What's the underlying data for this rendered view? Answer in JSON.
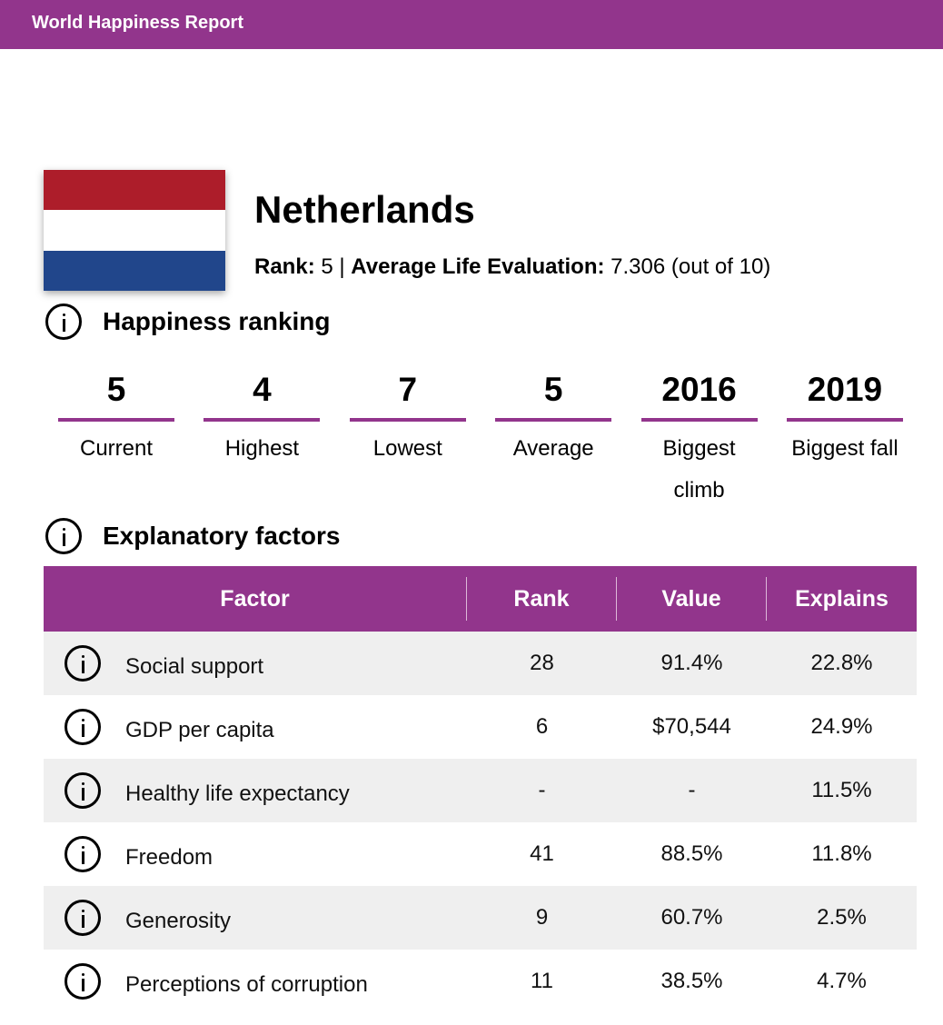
{
  "header": {
    "title": "World Happiness Report"
  },
  "country": {
    "name": "Netherlands",
    "flag": {
      "colors": [
        "#ad1d2a",
        "#ffffff",
        "#21468b"
      ]
    },
    "rank_label": "Rank:",
    "rank": "5",
    "separator": "|",
    "evaluation_label": "Average Life Evaluation:",
    "evaluation": "7.306 (out of 10)"
  },
  "happiness_ranking": {
    "heading": "Happiness ranking",
    "stats": [
      {
        "value": "5",
        "label": "Current"
      },
      {
        "value": "4",
        "label": "Highest"
      },
      {
        "value": "7",
        "label": "Lowest"
      },
      {
        "value": "5",
        "label": "Average"
      },
      {
        "value": "2016",
        "label": "Biggest climb"
      },
      {
        "value": "2019",
        "label": "Biggest fall"
      }
    ]
  },
  "explanatory_factors": {
    "heading": "Explanatory factors",
    "columns": [
      "Factor",
      "Rank",
      "Value",
      "Explains"
    ],
    "rows": [
      {
        "factor": "Social support",
        "rank": "28",
        "value": "91.4%",
        "explains": "22.8%"
      },
      {
        "factor": "GDP per capita",
        "rank": "6",
        "value": "$70,544",
        "explains": "24.9%"
      },
      {
        "factor": "Healthy life expectancy",
        "rank": "-",
        "value": "-",
        "explains": "11.5%"
      },
      {
        "factor": "Freedom",
        "rank": "41",
        "value": "88.5%",
        "explains": "11.8%"
      },
      {
        "factor": "Generosity",
        "rank": "9",
        "value": "60.7%",
        "explains": "2.5%"
      },
      {
        "factor": "Perceptions of corruption",
        "rank": "11",
        "value": "38.5%",
        "explains": "4.7%"
      }
    ]
  },
  "colors": {
    "accent": "#92358c",
    "row_shade": "#efefef"
  }
}
